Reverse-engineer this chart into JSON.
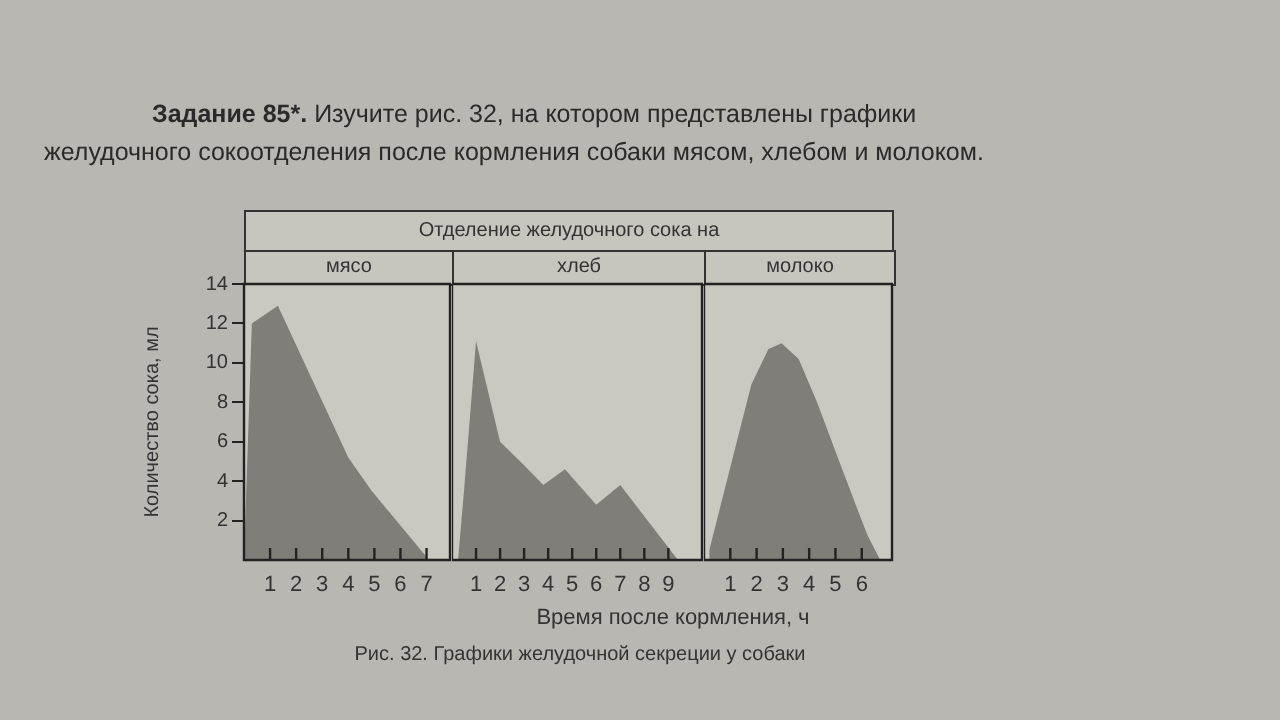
{
  "chart_data": [
    {
      "type": "area",
      "title": "мясо",
      "ylabel": "Количество сока, мл",
      "annotations": [
        "Задание 85*.",
        "Изучите рис. 32, на котором представлены графики желудочного сокоотделения после кормления собаки мясом, хлебом и молоком.",
        "Отделение желудочного сока на",
        "Рис. 32. Графики желудочной секреции у собаки"
      ],
      "x": [
        0,
        0.3,
        1.3,
        4,
        4.9,
        7.1
      ],
      "series": [
        {
          "color": "#7f7e78",
          "values": [
            0,
            12,
            12.9,
            5.2,
            3.5,
            0
          ]
        }
      ],
      "xlim": [
        0,
        7.9
      ],
      "xticks": [
        1,
        2,
        3,
        4,
        5,
        6,
        7
      ],
      "ylim": [
        0,
        14
      ],
      "yticks": [
        2,
        4,
        6,
        8,
        10,
        12,
        14
      ],
      "grid": false,
      "legend": false
    },
    {
      "type": "area",
      "title": "хлеб",
      "xlabel": "Время после кормления, ч",
      "x": [
        0.25,
        0.5,
        1,
        2,
        3,
        3.8,
        4.7,
        6,
        7,
        9.4
      ],
      "series": [
        {
          "color": "#7f7e78",
          "values": [
            0,
            3.5,
            11.1,
            6,
            4.8,
            3.8,
            4.6,
            2.8,
            3.8,
            0
          ]
        }
      ],
      "xlim": [
        0,
        10.4
      ],
      "xticks": [
        1,
        2,
        3,
        4,
        5,
        6,
        7,
        8,
        9
      ],
      "ylim": [
        0,
        14
      ],
      "yticks": [
        2,
        4,
        6,
        8,
        10,
        12,
        14
      ],
      "tick_labels": "x",
      "grid": false,
      "legend": false
    },
    {
      "type": "area",
      "title": "молоко",
      "x": [
        0.2,
        1.8,
        2.45,
        2.95,
        3.6,
        4.3,
        5.2,
        6.2,
        6.7
      ],
      "series": [
        {
          "color": "#7f7e78",
          "values": [
            0.5,
            8.9,
            10.7,
            11,
            10.2,
            8,
            4.8,
            1.3,
            0
          ]
        }
      ],
      "xlim": [
        0,
        7.15
      ],
      "xticks": [
        1,
        2,
        3,
        4,
        5,
        6
      ],
      "ylim": [
        0,
        14
      ],
      "yticks": [
        2,
        4,
        6,
        8,
        10,
        12,
        14
      ],
      "tick_labels": "x",
      "grid": false,
      "legend": false
    }
  ]
}
